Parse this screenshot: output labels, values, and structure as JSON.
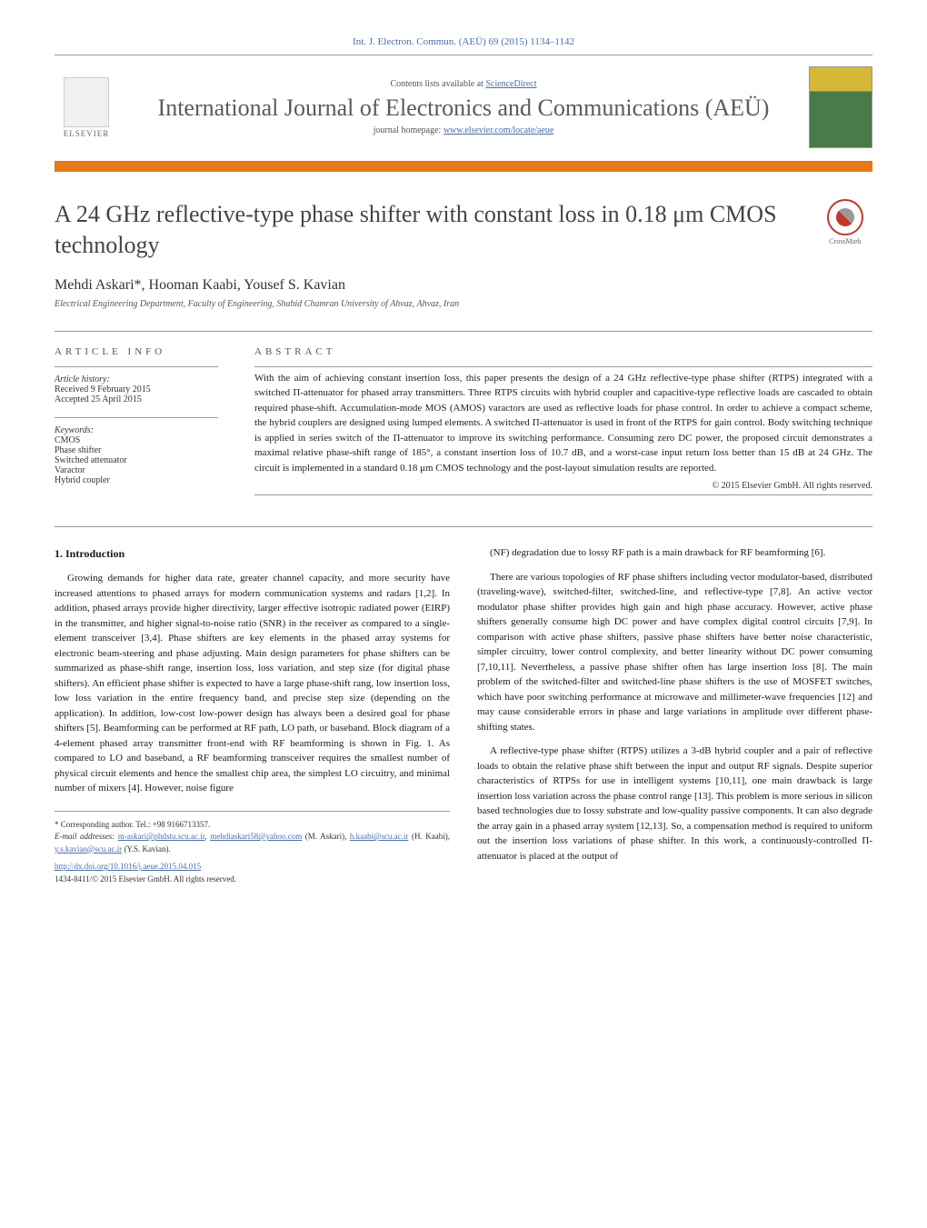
{
  "journal_ref": "Int. J. Electron. Commun. (AEÜ) 69 (2015) 1134–1142",
  "contents_line_prefix": "Contents lists available at ",
  "contents_line_link": "ScienceDirect",
  "journal_title": "International Journal of Electronics and Communications (AEÜ)",
  "homepage_prefix": "journal homepage: ",
  "homepage_link": "www.elsevier.com/locate/aeue",
  "elsevier_label": "ELSEVIER",
  "crossmark_label": "CrossMark",
  "article_title": "A 24 GHz reflective-type phase shifter with constant loss in 0.18 μm CMOS technology",
  "authors": "Mehdi Askari*, Hooman Kaabi, Yousef S. Kavian",
  "affiliation": "Electrical Engineering Department, Faculty of Engineering, Shahid Chamran University of Ahvaz, Ahvaz, Iran",
  "info_heading": "ARTICLE INFO",
  "history_label": "Article history:",
  "received": "Received 9 February 2015",
  "accepted": "Accepted 25 April 2015",
  "keywords_label": "Keywords:",
  "keywords": [
    "CMOS",
    "Phase shifter",
    "Switched attenuator",
    "Varactor",
    "Hybrid coupler"
  ],
  "abstract_heading": "ABSTRACT",
  "abstract_text": "With the aim of achieving constant insertion loss, this paper presents the design of a 24 GHz reflective-type phase shifter (RTPS) integrated with a switched Π-attenuator for phased array transmitters. Three RTPS circuits with hybrid coupler and capacitive-type reflective loads are cascaded to obtain required phase-shift. Accumulation-mode MOS (AMOS) varactors are used as reflective loads for phase control. In order to achieve a compact scheme, the hybrid couplers are designed using lumped elements. A switched Π-attenuator is used in front of the RTPS for gain control. Body switching technique is applied in series switch of the Π-attenuator to improve its switching performance. Consuming zero DC power, the proposed circuit demonstrates a maximal relative phase-shift range of 185°, a constant insertion loss of 10.7 dB, and a worst-case input return loss better than 15 dB at 24 GHz. The circuit is implemented in a standard 0.18 μm CMOS technology and the post-layout simulation results are reported.",
  "abstract_copyright": "© 2015 Elsevier GmbH. All rights reserved.",
  "section1_heading": "1. Introduction",
  "col1_p1": "Growing demands for higher data rate, greater channel capacity, and more security have increased attentions to phased arrays for modern communication systems and radars [1,2]. In addition, phased arrays provide higher directivity, larger effective isotropic radiated power (EIRP) in the transmitter, and higher signal-to-noise ratio (SNR) in the receiver as compared to a single-element transceiver [3,4]. Phase shifters are key elements in the phased array systems for electronic beam-steering and phase adjusting. Main design parameters for phase shifters can be summarized as phase-shift range, insertion loss, loss variation, and step size (for digital phase shifters). An efficient phase shifter is expected to have a large phase-shift rang, low insertion loss, low loss variation in the entire frequency band, and precise step size (depending on the application). In addition, low-cost low-power design has always been a desired goal for phase shifters [5]. Beamforming can be performed at RF path, LO path, or baseband. Block diagram of a 4-element phased array transmitter front-end with RF beamforming is shown in Fig. 1. As compared to LO and baseband, a RF beamforming transceiver requires the smallest number of physical circuit elements and hence the smallest chip area, the simplest LO circuitry, and minimal number of mixers [4]. However, noise figure",
  "col2_p1": "(NF) degradation due to lossy RF path is a main drawback for RF beamforming [6].",
  "col2_p2": "There are various topologies of RF phase shifters including vector modulator-based, distributed (traveling-wave), switched-filter, switched-line, and reflective-type [7,8]. An active vector modulator phase shifter provides high gain and high phase accuracy. However, active phase shifters generally consume high DC power and have complex digital control circuits [7,9]. In comparison with active phase shifters, passive phase shifters have better noise characteristic, simpler circuitry, lower control complexity, and better linearity without DC power consuming [7,10,11]. Nevertheless, a passive phase shifter often has large insertion loss [8]. The main problem of the switched-filter and switched-line phase shifters is the use of MOSFET switches, which have poor switching performance at microwave and millimeter-wave frequencies [12] and may cause considerable errors in phase and large variations in amplitude over different phase-shifting states.",
  "col2_p3": "A reflective-type phase shifter (RTPS) utilizes a 3-dB hybrid coupler and a pair of reflective loads to obtain the relative phase shift between the input and output RF signals. Despite superior characteristics of RTPSs for use in intelligent systems [10,11], one main drawback is large insertion loss variation across the phase control range [13]. This problem is more serious in silicon based technologies due to lossy substrate and low-quality passive components. It can also degrade the array gain in a phased array system [12,13]. So, a compensation method is required to uniform out the insertion loss variations of phase shifter. In this work, a continuously-controlled Π-attenuator is placed at the output of",
  "corresponding_label": "* Corresponding author. Tel.: +98 9166713357.",
  "email_label": "E-mail addresses: ",
  "email1": "m-askari@phdstu.scu.ac.ir",
  "email1_sep": ", ",
  "email2": "mehdiaskari58@yahoo.com",
  "email_author1": " (M. Askari), ",
  "email3": "h.kaabi@scu.ac.ir",
  "email_author2": " (H. Kaabi), ",
  "email4": "y.s.kavian@scu.ac.ir",
  "email_author3": " (Y.S. Kavian).",
  "doi": "http://dx.doi.org/10.1016/j.aeue.2015.04.015",
  "footer_copyright": "1434-8411/© 2015 Elsevier GmbH. All rights reserved.",
  "colors": {
    "link": "#4a6fa5",
    "orange_bar": "#e67817",
    "text": "#1a1a1a",
    "heading_gray": "#555555"
  }
}
